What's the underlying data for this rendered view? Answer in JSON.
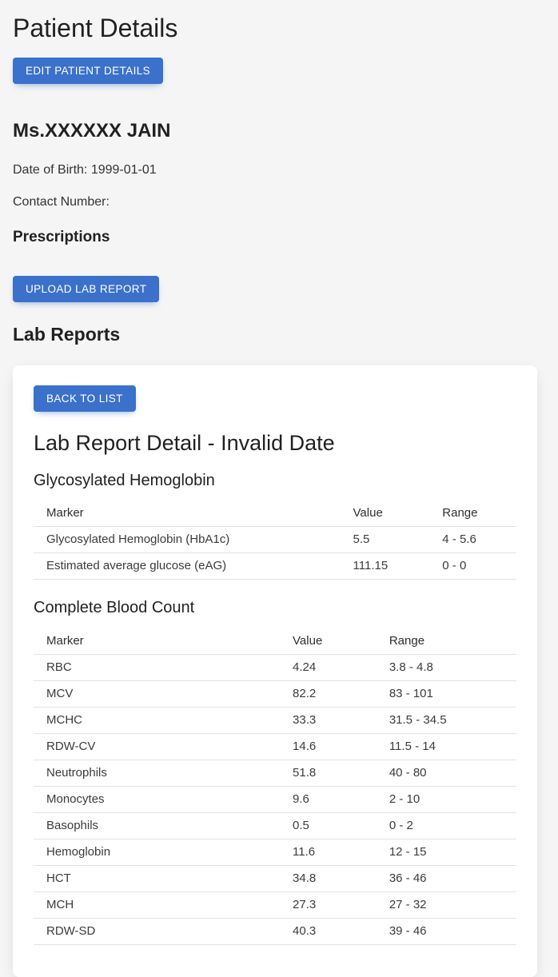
{
  "colors": {
    "primary": "#3b71ca",
    "page_background": "#f5f5f5",
    "card_background": "#ffffff",
    "divider": "#e3e3e3",
    "heading_text": "#212121",
    "body_text": "#333333"
  },
  "header": {
    "title": "Patient Details"
  },
  "buttons": {
    "edit": "EDIT PATIENT DETAILS",
    "upload": "UPLOAD LAB REPORT",
    "back": "BACK TO LIST"
  },
  "patient": {
    "name": "Ms.XXXXXX JAIN",
    "dob_label": "Date of Birth:",
    "dob_value": "1999-01-01",
    "contact_label": "Contact Number:",
    "contact_value": ""
  },
  "sections": {
    "prescriptions": "Prescriptions",
    "lab_reports": "Lab Reports"
  },
  "report": {
    "title": "Lab Report Detail - Invalid Date",
    "tables": [
      {
        "heading": "Glycosylated Hemoglobin",
        "columns": [
          "Marker",
          "Value",
          "Range"
        ],
        "rows": [
          [
            "Glycosylated Hemoglobin (HbA1c)",
            "5.5",
            "4 - 5.6"
          ],
          [
            "Estimated average glucose (eAG)",
            "111.15",
            "0 - 0"
          ]
        ]
      },
      {
        "heading": "Complete Blood Count",
        "columns": [
          "Marker",
          "Value",
          "Range"
        ],
        "rows": [
          [
            "RBC",
            "4.24",
            "3.8 - 4.8"
          ],
          [
            "MCV",
            "82.2",
            "83 - 101"
          ],
          [
            "MCHC",
            "33.3",
            "31.5 - 34.5"
          ],
          [
            "RDW-CV",
            "14.6",
            "11.5 - 14"
          ],
          [
            "Neutrophils",
            "51.8",
            "40 - 80"
          ],
          [
            "Monocytes",
            "9.6",
            "2 - 10"
          ],
          [
            "Basophils",
            "0.5",
            "0 - 2"
          ],
          [
            "Hemoglobin",
            "11.6",
            "12 - 15"
          ],
          [
            "HCT",
            "34.8",
            "36 - 46"
          ],
          [
            "MCH",
            "27.3",
            "27 - 32"
          ],
          [
            "RDW-SD",
            "40.3",
            "39 - 46"
          ]
        ]
      }
    ]
  }
}
